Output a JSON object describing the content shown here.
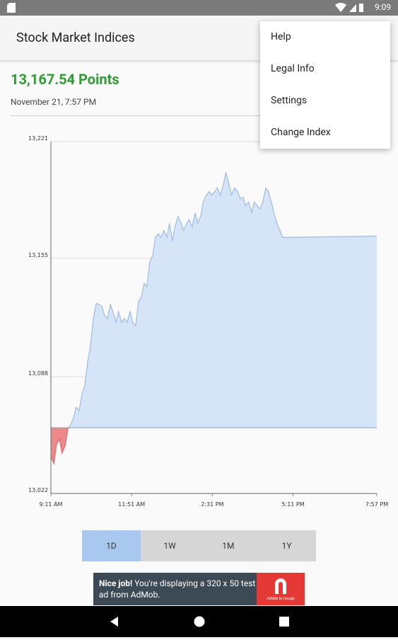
{
  "status_bar": {
    "time": "9:09"
  },
  "app_bar": {
    "title": "Stock Market Indices"
  },
  "menu": {
    "items": [
      "Help",
      "Legal Info",
      "Settings",
      "Change Index"
    ]
  },
  "quote": {
    "value": "13,167.54",
    "unit": "Points",
    "date": "November 21, 7:57 PM"
  },
  "chart_data": {
    "type": "area",
    "x": [
      0,
      6,
      11,
      17,
      22,
      28,
      34,
      39,
      45,
      50,
      56,
      62,
      67,
      73,
      78,
      84,
      90,
      95,
      101,
      106,
      112,
      118,
      123,
      129,
      134,
      140,
      146,
      151,
      157,
      162,
      168,
      174,
      179,
      185,
      190,
      196,
      202,
      207,
      213,
      218,
      224,
      230,
      235,
      241,
      246,
      252,
      258,
      263,
      269,
      274,
      280,
      286,
      291,
      297,
      302,
      308,
      314,
      319,
      325,
      330,
      336,
      342,
      347,
      353,
      358,
      364,
      370,
      375,
      381,
      386,
      392,
      398,
      403,
      409,
      414,
      420,
      426,
      431,
      437,
      442,
      448,
      454,
      459,
      646
    ],
    "series": [
      {
        "color": "#9fbbe0",
        "fill": "#d5e5f7",
        "negative_color": "#e06a6a",
        "negative_fill": "#ec8a8a",
        "values": [
          13042.8,
          13038.8,
          13049.6,
          13052.8,
          13044.8,
          13048.8,
          13058.8,
          13060.8,
          13064.8,
          13070.8,
          13068.8,
          13078.8,
          13082.8,
          13096.8,
          13104.8,
          13120.8,
          13129.6,
          13128.8,
          13128,
          13122.8,
          13120.8,
          13128.8,
          13124.8,
          13118.8,
          13124.8,
          13118.8,
          13120.8,
          13118.8,
          13124.8,
          13118.8,
          13116.8,
          13130.8,
          13132.8,
          13140.8,
          13138.8,
          13152.8,
          13156.8,
          13166.8,
          13168.8,
          13166.8,
          13170.8,
          13166.8,
          13174.8,
          13164.8,
          13172.8,
          13178.8,
          13174.8,
          13170.8,
          13174.8,
          13176.8,
          13172.8,
          13180.8,
          13174.8,
          13178.8,
          13186.8,
          13190.8,
          13192.8,
          13190.8,
          13192.8,
          13194.8,
          13190.8,
          13196.8,
          13203.6,
          13196.8,
          13190.8,
          13194.8,
          13192.8,
          13188.8,
          13189.6,
          13184.8,
          13186.8,
          13180.8,
          13186.8,
          13184.8,
          13182.8,
          13186.8,
          13194.8,
          13192.8,
          13186.8,
          13180.8,
          13174.8,
          13170.8,
          13166.8,
          13167.54
        ]
      }
    ],
    "baseline": 13059.2,
    "xlim": [
      0,
      646
    ],
    "xticks": [
      {
        "value": 0,
        "label": "9:11 AM"
      },
      {
        "value": 160,
        "label": "11:51 AM"
      },
      {
        "value": 320,
        "label": "2:31 PM"
      },
      {
        "value": 480,
        "label": "5:11 PM"
      },
      {
        "value": 646,
        "label": "7:57 PM"
      }
    ],
    "ylim": [
      13022,
      13221
    ],
    "yticks": [
      {
        "value": 13022,
        "label": "13,022"
      },
      {
        "value": 13088,
        "label": "13,088"
      },
      {
        "value": 13155,
        "label": "13,155"
      },
      {
        "value": 13221,
        "label": "13,221"
      }
    ],
    "grid": true
  },
  "ranges": {
    "options": [
      "1D",
      "1W",
      "1M",
      "1Y"
    ],
    "selected": 0
  },
  "ad": {
    "bold": "Nice job!",
    "text": "You're displaying a 320 x 50 test ad from AdMob.",
    "logo_text": "AdMob by Google"
  }
}
